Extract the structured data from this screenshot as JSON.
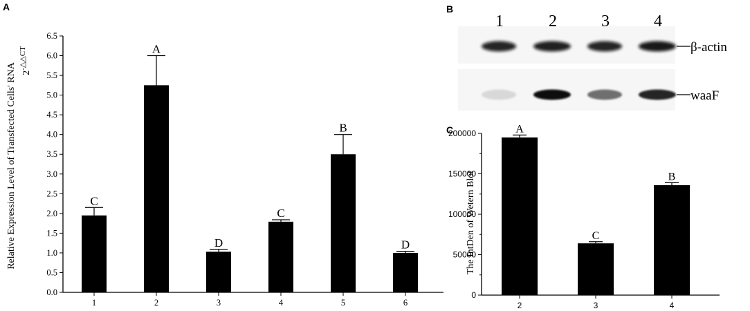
{
  "panels": {
    "a": {
      "letter": "A"
    },
    "b": {
      "letter": "B"
    },
    "c": {
      "letter": "C"
    }
  },
  "chart_data": [
    {
      "id": "A",
      "type": "bar",
      "categories": [
        "1",
        "2",
        "3",
        "4",
        "5",
        "6"
      ],
      "values": [
        1.95,
        5.25,
        1.03,
        1.79,
        3.5,
        1.0
      ],
      "errors": [
        0.2,
        0.75,
        0.06,
        0.05,
        0.5,
        0.04
      ],
      "significance_labels": [
        "C",
        "A",
        "D",
        "C",
        "B",
        "D"
      ],
      "ylabel_line1": "Relative Expression  Level of Transfected Cells' RNA",
      "ylabel_line2": "2",
      "ylabel_superscript": "-△△CT",
      "ylim": [
        0,
        6.5
      ],
      "yticks": [
        "0.0",
        "0.5",
        "1.0",
        "1.5",
        "2.0",
        "2.5",
        "3.0",
        "3.5",
        "4.0",
        "4.5",
        "5.0",
        "5.5",
        "6.0",
        "6.5"
      ],
      "bar_color": "#000000"
    },
    {
      "id": "C",
      "type": "bar",
      "categories": [
        "2",
        "3",
        "4"
      ],
      "values": [
        195000,
        64000,
        136000
      ],
      "errors": [
        3000,
        2000,
        3000
      ],
      "significance_labels": [
        "A",
        "C",
        "B"
      ],
      "ylabel": "The IntDen of Wetern Blot",
      "ylim": [
        0,
        200000
      ],
      "yticks": [
        "0",
        "50000",
        "100000",
        "150000",
        "200000"
      ],
      "bar_color": "#000000"
    }
  ],
  "blot": {
    "lane_labels": [
      "1",
      "2",
      "3",
      "4"
    ],
    "bands": [
      {
        "label": "β-actin",
        "intensities": [
          0.9,
          0.92,
          0.9,
          0.95
        ]
      },
      {
        "label": "waaF",
        "intensities": [
          0.04,
          1.0,
          0.55,
          0.9
        ]
      }
    ]
  }
}
